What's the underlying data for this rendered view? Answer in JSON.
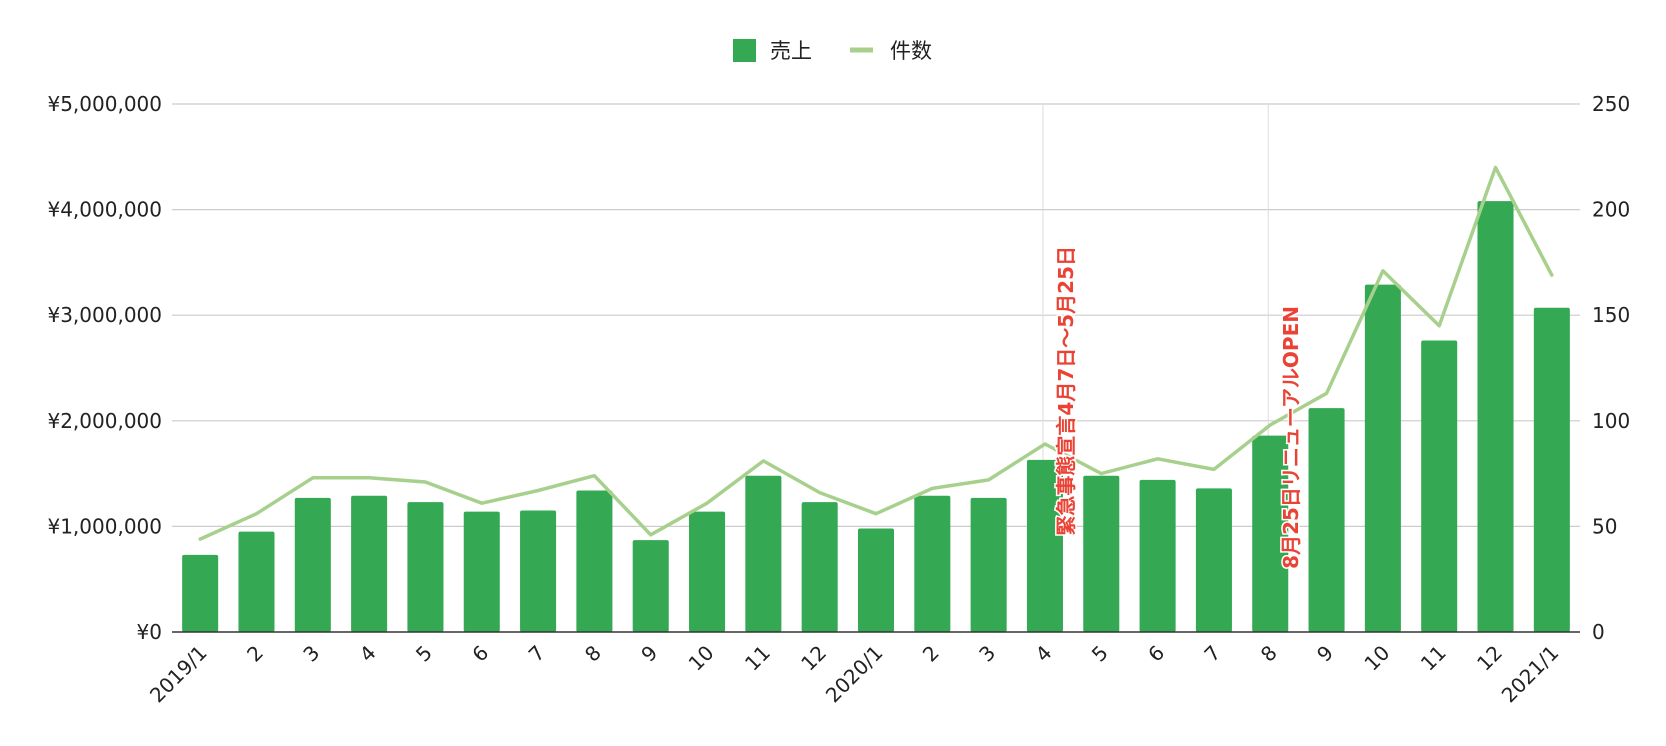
{
  "chart_data": {
    "type": "bar",
    "categories": [
      "2019/1",
      "2",
      "3",
      "4",
      "5",
      "6",
      "7",
      "8",
      "9",
      "10",
      "11",
      "12",
      "2020/1",
      "2",
      "3",
      "4",
      "5",
      "6",
      "7",
      "8",
      "9",
      "10",
      "11",
      "12",
      "2021/1"
    ],
    "series": [
      {
        "name": "売上",
        "type": "bar",
        "axis": "left",
        "color": "#34a853",
        "values": [
          730000,
          950000,
          1270000,
          1290000,
          1230000,
          1140000,
          1150000,
          1340000,
          870000,
          1140000,
          1480000,
          1230000,
          980000,
          1290000,
          1270000,
          1630000,
          1480000,
          1440000,
          1360000,
          1860000,
          2120000,
          3290000,
          2760000,
          4080000,
          3070000
        ]
      },
      {
        "name": "件数",
        "type": "line",
        "axis": "right",
        "color": "#a8d08d",
        "values": [
          44,
          56,
          73,
          73,
          71,
          61,
          67,
          74,
          46,
          61,
          81,
          66,
          56,
          68,
          72,
          89,
          75,
          82,
          77,
          98,
          113,
          171,
          145,
          220,
          169
        ]
      }
    ],
    "y_left": {
      "min": 0,
      "max": 5000000,
      "ticks": [
        "¥0",
        "¥1,000,000",
        "¥2,000,000",
        "¥3,000,000",
        "¥4,000,000",
        "¥5,000,000"
      ]
    },
    "y_right": {
      "min": 0,
      "max": 250,
      "ticks": [
        "0",
        "50",
        "100",
        "150",
        "200",
        "250"
      ]
    },
    "grid": true,
    "legend": {
      "position": "top-center",
      "items": [
        "売上",
        "件数"
      ]
    },
    "annotations": [
      {
        "category_index": 15,
        "text": "緊急事態宣言4月7日〜5月25日",
        "color": "#ea4335"
      },
      {
        "category_index": 19,
        "text": "8月25日リニューアルOPEN",
        "color": "#ea4335"
      }
    ]
  }
}
